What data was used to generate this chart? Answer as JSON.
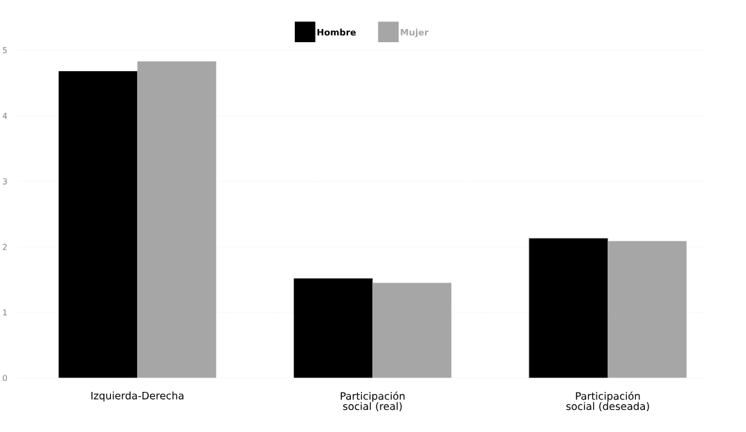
{
  "chart_data": {
    "type": "bar",
    "categories": [
      "Izquierda-Derecha",
      "Participación social (real)",
      "Participación social (deseada)"
    ],
    "series": [
      {
        "name": "Hombre",
        "color": "#000000",
        "values": [
          4.68,
          1.52,
          2.13
        ]
      },
      {
        "name": "Mujer",
        "color": "#a6a6a6",
        "values": [
          4.83,
          1.45,
          2.09
        ]
      }
    ],
    "ylim": [
      0,
      5
    ],
    "yticks": [
      0,
      1,
      2,
      3,
      4,
      5
    ],
    "grid": "y",
    "legend": "top"
  }
}
